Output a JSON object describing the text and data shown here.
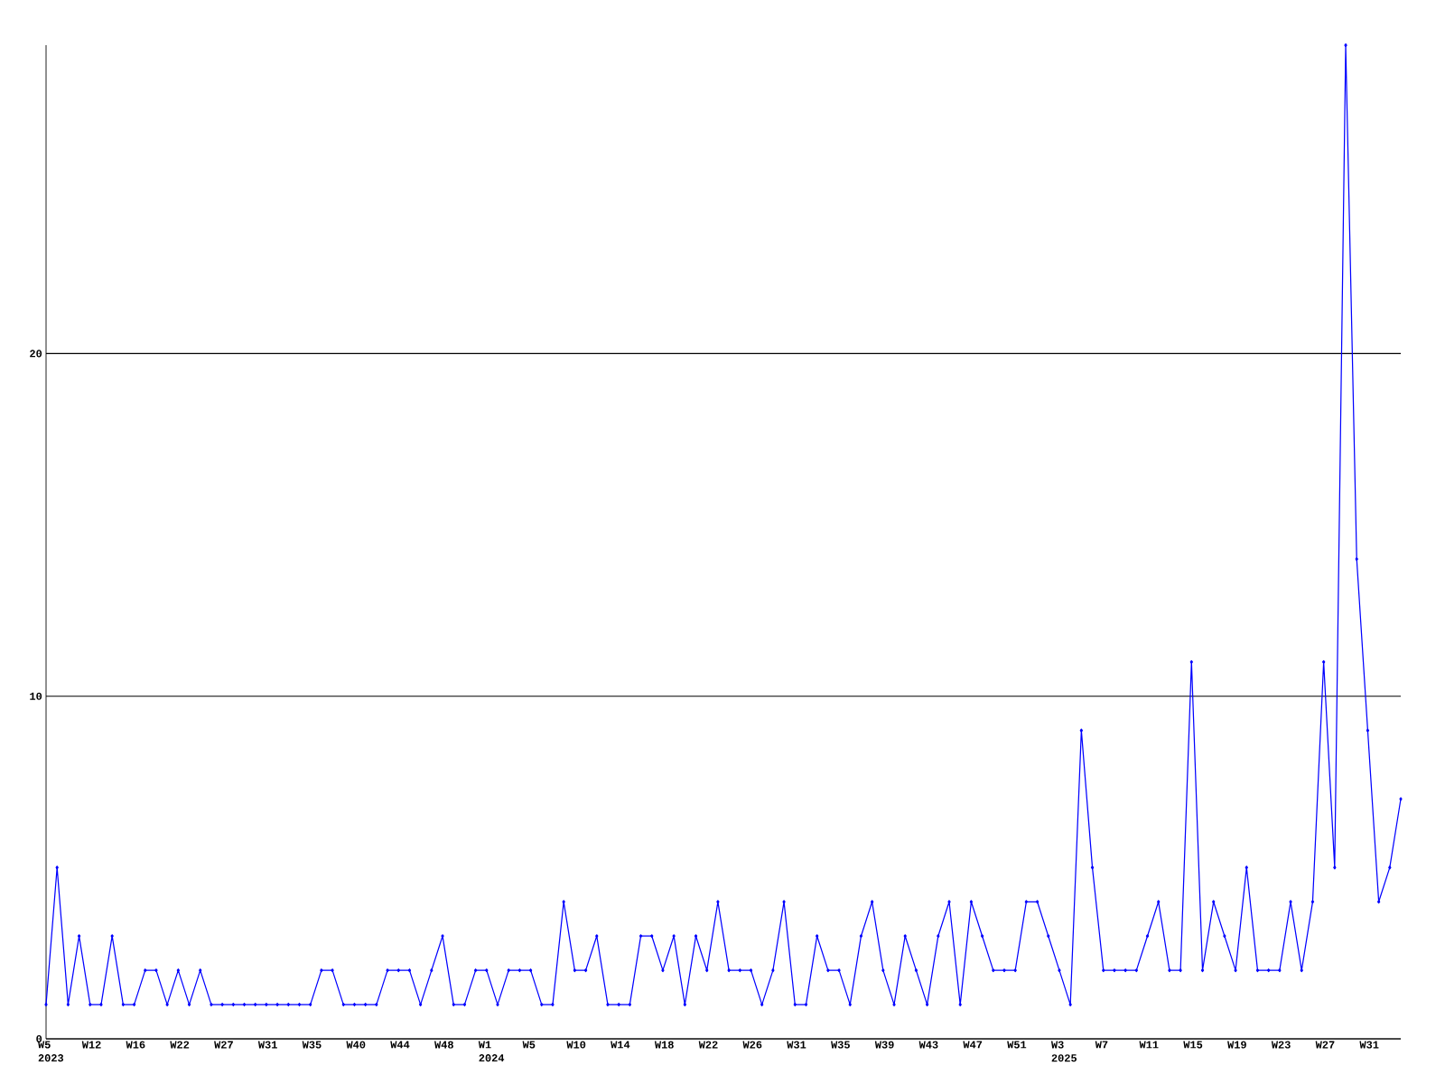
{
  "chart_data": {
    "type": "line",
    "categories": [
      "W5 2023",
      null,
      null,
      null,
      "W12",
      null,
      null,
      null,
      "W16",
      null,
      null,
      null,
      "W22",
      null,
      null,
      null,
      "W27",
      null,
      null,
      null,
      "W31",
      null,
      null,
      null,
      "W35",
      null,
      null,
      null,
      "W40",
      null,
      null,
      null,
      "W44",
      null,
      null,
      null,
      "W48",
      null,
      null,
      null,
      "W1 2024",
      null,
      null,
      null,
      "W5",
      null,
      null,
      null,
      "W10",
      null,
      null,
      null,
      "W14",
      null,
      null,
      null,
      "W18",
      null,
      null,
      null,
      "W22",
      null,
      null,
      null,
      "W26",
      null,
      null,
      null,
      "W31",
      null,
      null,
      null,
      "W35",
      null,
      null,
      null,
      "W39",
      null,
      null,
      null,
      "W43",
      null,
      null,
      null,
      "W47",
      null,
      null,
      null,
      "W51",
      null,
      null,
      null,
      "W3 2025",
      null,
      null,
      null,
      "W7",
      null,
      null,
      null,
      "W11",
      null,
      null,
      null,
      "W15",
      null,
      null,
      null,
      "W19",
      null,
      null,
      null,
      "W23",
      null,
      null,
      null,
      "W27",
      null,
      null,
      null,
      "W31",
      null,
      null,
      null
    ],
    "values": [
      1,
      5,
      1,
      3,
      1,
      1,
      3,
      1,
      1,
      2,
      2,
      1,
      2,
      1,
      2,
      1,
      1,
      1,
      1,
      1,
      1,
      1,
      1,
      1,
      1,
      2,
      2,
      1,
      1,
      1,
      1,
      2,
      2,
      2,
      1,
      2,
      3,
      1,
      1,
      2,
      2,
      1,
      2,
      2,
      2,
      1,
      1,
      4,
      2,
      2,
      3,
      1,
      1,
      1,
      3,
      3,
      2,
      3,
      1,
      3,
      2,
      4,
      2,
      2,
      2,
      1,
      2,
      4,
      1,
      1,
      3,
      2,
      2,
      1,
      3,
      4,
      2,
      1,
      3,
      2,
      1,
      3,
      4,
      1,
      4,
      3,
      2,
      2,
      2,
      4,
      4,
      3,
      2,
      1,
      9,
      5,
      2,
      2,
      2,
      2,
      3,
      4,
      2,
      2,
      11,
      2,
      4,
      3,
      2,
      5,
      2,
      2,
      2,
      4,
      2,
      4,
      11,
      5,
      29,
      14,
      9,
      4,
      5,
      7
    ],
    "color": "#0000ff",
    "marker": "diamond",
    "line_style": "solid",
    "ylim": [
      0,
      29
    ],
    "yticks": [
      0,
      10,
      20
    ],
    "grid": "y"
  }
}
